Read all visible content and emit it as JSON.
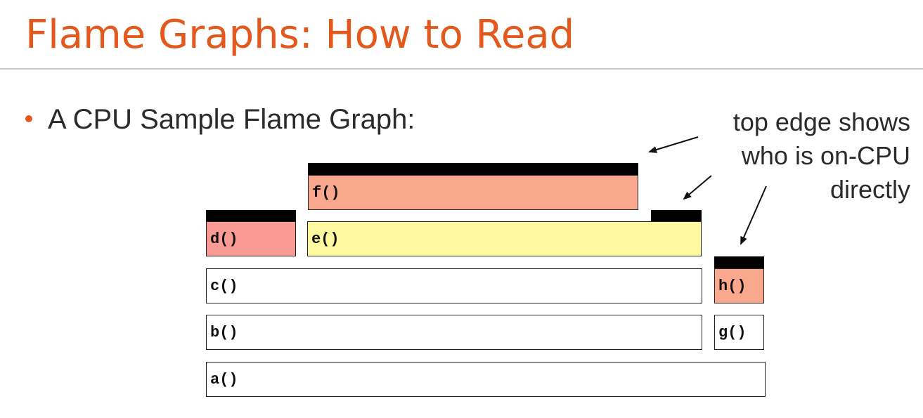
{
  "title": "Flame Graphs: How to Read",
  "bullet": "A CPU Sample Flame Graph:",
  "annotation": {
    "lines": [
      "top edge shows",
      "who is on-CPU",
      "directly"
    ]
  },
  "frames": {
    "f": {
      "label": "f()",
      "color": "#f9a78d"
    },
    "d": {
      "label": "d()",
      "color": "#f99a94"
    },
    "e": {
      "label": "e()",
      "color": "#fcf9a0"
    },
    "c": {
      "label": "c()",
      "color": "#ffffff"
    },
    "h": {
      "label": "h()",
      "color": "#f9a78d"
    },
    "b": {
      "label": "b()",
      "color": "#ffffff"
    },
    "g": {
      "label": "g()",
      "color": "#ffffff"
    },
    "a": {
      "label": "a()",
      "color": "#ffffff"
    }
  },
  "colors": {
    "accent": "#e2581d",
    "on_cpu_edge": "#000000"
  }
}
